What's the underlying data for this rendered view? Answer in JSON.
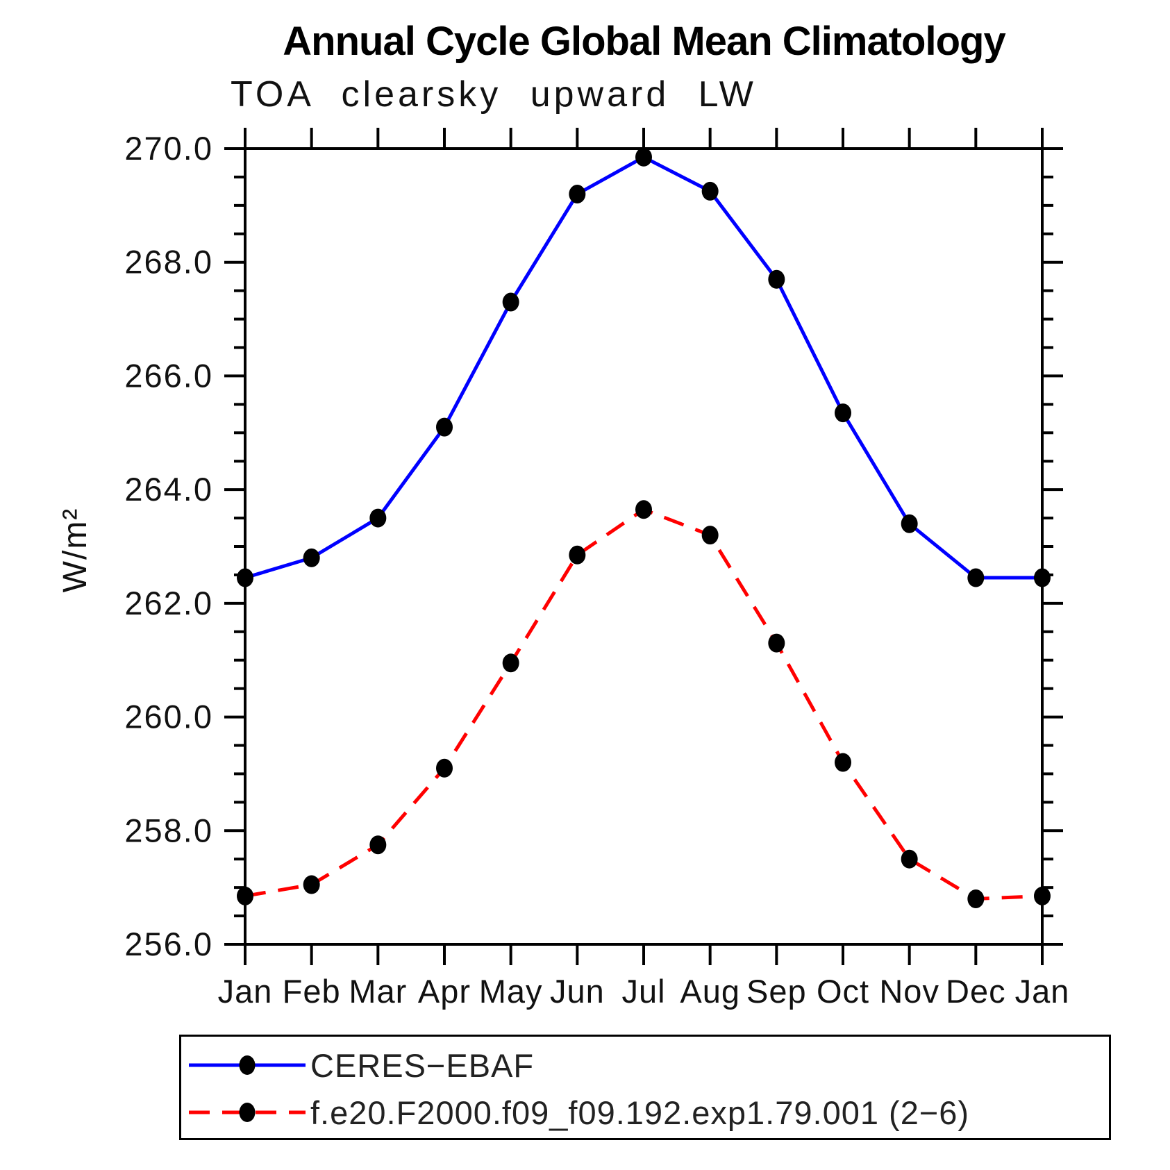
{
  "chart_data": {
    "type": "line",
    "title": "Annual Cycle Global Mean Climatology",
    "subtitle": "TOA clearsky upward LW",
    "ylabel": "W/m²",
    "xlabel": "",
    "categories": [
      "Jan",
      "Feb",
      "Mar",
      "Apr",
      "May",
      "Jun",
      "Jul",
      "Aug",
      "Sep",
      "Oct",
      "Nov",
      "Dec",
      "Jan"
    ],
    "ylim": [
      256.0,
      270.0
    ],
    "y_major_step": 2.0,
    "y_minor_step": 0.5,
    "grid": false,
    "legend_position": "bottom-left",
    "axis_color": "#000000",
    "marker_color": "#000000",
    "series": [
      {
        "name": "CERES−EBAF",
        "color": "#0000ff",
        "line_style": "solid",
        "marker": "circle",
        "values": [
          262.45,
          262.8,
          263.5,
          265.1,
          267.3,
          269.2,
          269.85,
          269.25,
          267.7,
          265.35,
          263.4,
          262.45,
          262.45
        ]
      },
      {
        "name": "f.e20.F2000.f09_f09.192.exp1.79.001 (2−6)",
        "color": "#ff0000",
        "line_style": "dashed",
        "marker": "circle",
        "values": [
          256.85,
          257.05,
          257.75,
          259.1,
          260.95,
          262.85,
          263.65,
          263.2,
          261.3,
          259.2,
          257.5,
          256.8,
          256.85
        ]
      }
    ]
  }
}
